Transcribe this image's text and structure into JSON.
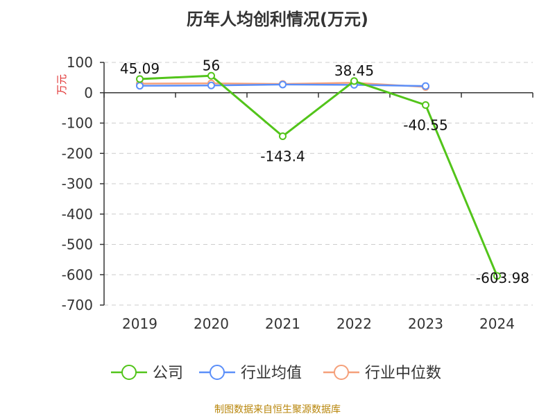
{
  "title": "历年人均创利情况(万元)",
  "footer": "制图数据来自恒生聚源数据库",
  "colors": {
    "company": "#52c41a",
    "industry_avg": "#5b8ff9",
    "industry_median": "#f5a07a",
    "grid": "#cccccc",
    "axis": "#333333"
  },
  "chart_data": {
    "type": "line",
    "title": "历年人均创利情况(万元)",
    "ylabel": "万元",
    "xlabel": "",
    "categories": [
      "2019",
      "2020",
      "2021",
      "2022",
      "2023",
      "2024"
    ],
    "ylim": [
      -700,
      100
    ],
    "yticks": [
      100,
      0,
      -100,
      -200,
      -300,
      -400,
      -500,
      -600,
      -700
    ],
    "grid": "horizontal dashed",
    "legend": "bottom",
    "series": [
      {
        "name": "公司",
        "color": "#52c41a",
        "values": [
          45.09,
          56,
          -143.4,
          38.45,
          -40.55,
          -603.98
        ],
        "labels": [
          "45.09",
          "56",
          "-143.4",
          "38.45",
          "-40.55",
          "-603.98"
        ]
      },
      {
        "name": "行业均值",
        "color": "#5b8ff9",
        "values": [
          23,
          24,
          27,
          26,
          22,
          null
        ]
      },
      {
        "name": "行业中位数",
        "color": "#f5a07a",
        "values": [
          30,
          31,
          29,
          33,
          19,
          null
        ]
      }
    ]
  }
}
